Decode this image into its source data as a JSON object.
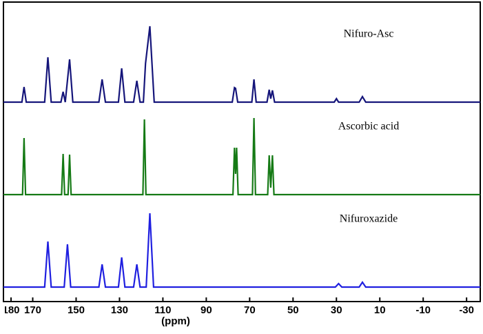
{
  "chart_data": {
    "type": "line",
    "x_label": "(ppm)",
    "xlim": [
      183.5,
      -36.3
    ],
    "xticks": [
      180,
      170,
      150,
      130,
      110,
      90,
      70,
      50,
      30,
      10,
      -10,
      -30
    ],
    "series": [
      {
        "name": "Nifuro-Asc",
        "color": "#15157a",
        "x": [
          183.5,
          175,
          174,
          173,
          164.5,
          163,
          161.5,
          157,
          156,
          155,
          153,
          151.5,
          139.5,
          138,
          136.5,
          130.5,
          129,
          127.5,
          123.5,
          122,
          120.5,
          119,
          118,
          116,
          114,
          78,
          77,
          76.5,
          75.5,
          69,
          68,
          67,
          62,
          61,
          60.3,
          59.5,
          58.5,
          31,
          30,
          29,
          19.5,
          18,
          16.5,
          -36.3
        ],
        "values": [
          0,
          0,
          22,
          0,
          0,
          65,
          0,
          0,
          15,
          0,
          62,
          0,
          0,
          33,
          0,
          0,
          49,
          0,
          0,
          31,
          0,
          0,
          56,
          110,
          0,
          0,
          21,
          20,
          0,
          0,
          33,
          0,
          0,
          18,
          5,
          17,
          0,
          0,
          5,
          0,
          0,
          8,
          0,
          0
        ]
      },
      {
        "name": "Ascorbic acid",
        "color": "#157a15",
        "x": [
          183.5,
          174.7,
          174,
          173.3,
          156.7,
          156,
          155.3,
          153.7,
          153,
          152.3,
          119.2,
          118.5,
          117.8,
          77.7,
          77,
          76.5,
          76,
          75.3,
          68.7,
          68,
          67.3,
          61.7,
          61,
          60.3,
          59.5,
          58.8,
          -36.3
        ],
        "values": [
          0,
          0,
          82,
          0,
          0,
          59,
          0,
          0,
          58,
          0,
          0,
          109,
          0,
          0,
          68,
          30,
          68,
          0,
          0,
          111,
          0,
          0,
          57,
          10,
          57,
          0,
          0
        ]
      },
      {
        "name": "Nifuroxazide",
        "color": "#1f1fe0",
        "x": [
          183.5,
          164.5,
          163,
          161.5,
          155.5,
          154,
          152.5,
          139.5,
          138,
          136.5,
          130.5,
          129,
          127.5,
          123.5,
          122,
          120.5,
          117.7,
          116,
          114.3,
          30.5,
          29,
          27.5,
          19.5,
          18,
          16.5,
          -36.3
        ],
        "values": [
          0,
          0,
          66,
          0,
          0,
          62,
          0,
          0,
          33,
          0,
          0,
          43,
          0,
          0,
          33,
          0,
          0,
          107,
          0,
          0,
          5,
          0,
          0,
          7,
          0,
          0
        ]
      }
    ]
  }
}
